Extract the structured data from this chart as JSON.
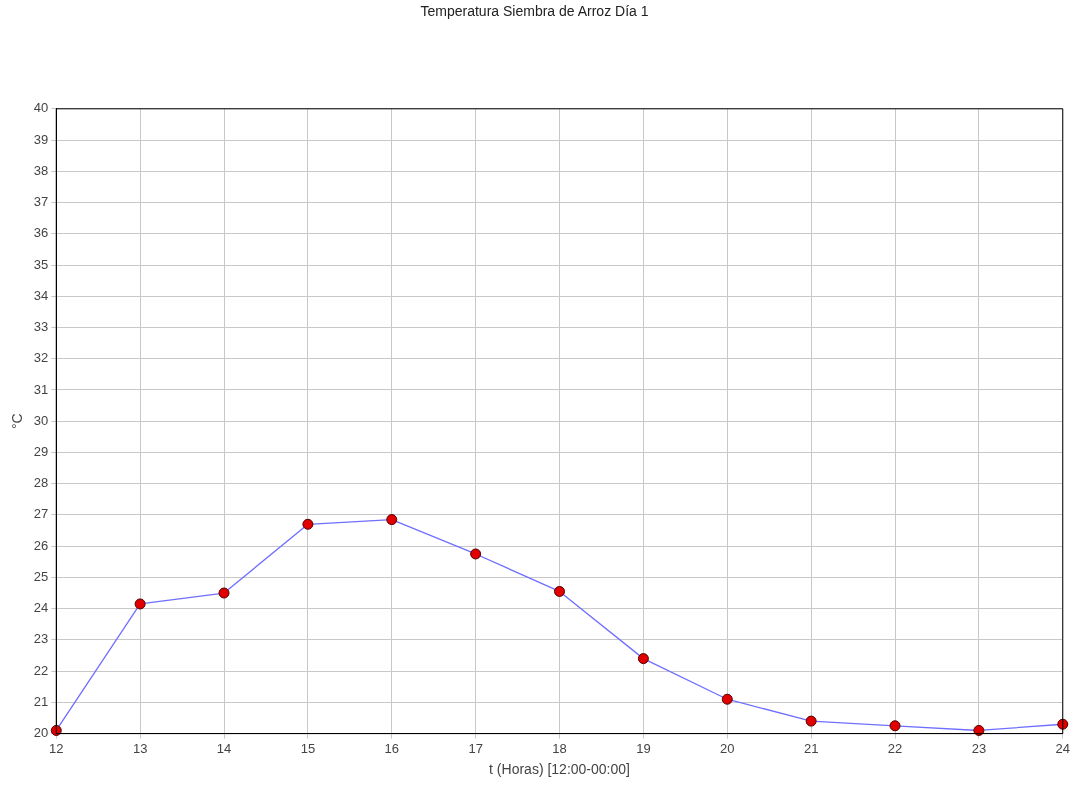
{
  "chart_data": {
    "type": "line",
    "title": "Temperatura Siembra de Arroz Día 1",
    "xlabel": "t (Horas) [12:00-00:00]",
    "ylabel": "°C",
    "x": [
      12,
      13,
      14,
      15,
      16,
      17,
      18,
      19,
      20,
      21,
      22,
      23,
      24
    ],
    "series": [
      {
        "color": "#6f6fff",
        "colors": [
          "#e00000",
          "#e00000",
          "#e00000",
          "#e00000",
          "#e00000",
          "#e00000",
          "#e00000",
          "#e00000",
          "#e00000",
          "#e00000",
          "#e00000",
          "#e00000",
          "#e00000"
        ],
        "values": [
          20.1,
          24.15,
          24.5,
          26.7,
          26.85,
          25.75,
          24.55,
          22.4,
          21.1,
          20.4,
          20.25,
          20.1,
          20.3
        ]
      }
    ],
    "xlim": [
      12,
      24
    ],
    "xticks": [
      12,
      13,
      14,
      15,
      16,
      17,
      18,
      19,
      20,
      21,
      22,
      23,
      24
    ],
    "ylim": [
      20,
      40
    ],
    "yticks": [
      20,
      21,
      22,
      23,
      24,
      25,
      26,
      27,
      28,
      29,
      30,
      31,
      32,
      33,
      34,
      35,
      36,
      37,
      38,
      39,
      40
    ],
    "grid": true,
    "marker": "circle",
    "line_style": "solid"
  }
}
